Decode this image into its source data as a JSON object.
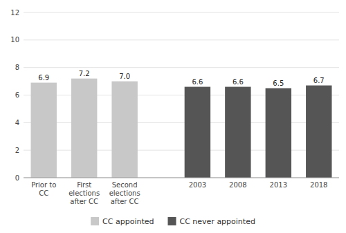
{
  "chart_data": {
    "type": "bar",
    "categories": [
      "Prior to\nCC",
      "First\nelections\nafter CC",
      "Second\nelections\nafter CC",
      "2003",
      "2008",
      "2013",
      "2018"
    ],
    "series": [
      {
        "name": "CC appointed",
        "color": "#c8c8c8",
        "values": [
          6.9,
          7.2,
          7.0,
          null,
          null,
          null,
          null
        ],
        "value_labels": [
          "6.9",
          "7.2",
          "7.0",
          null,
          null,
          null,
          null
        ]
      },
      {
        "name": "CC never appointed",
        "color": "#555555",
        "values": [
          null,
          null,
          null,
          6.6,
          6.6,
          6.5,
          6.7
        ]
      }
    ],
    "ylim": [
      0,
      12
    ],
    "yticks": [
      0,
      2,
      4,
      6,
      8,
      10,
      12
    ],
    "grid": true,
    "data_labels": true,
    "legend": "bottom"
  }
}
